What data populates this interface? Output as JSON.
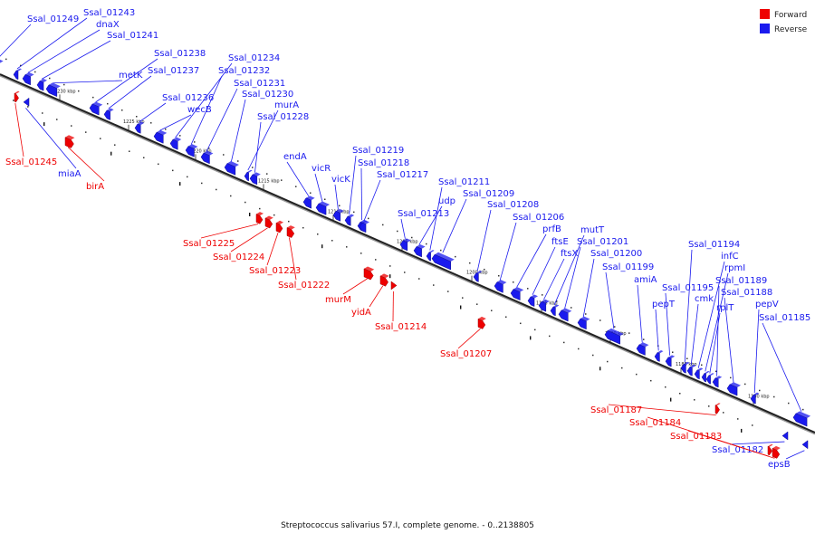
{
  "legend": {
    "forward": {
      "label": "Forward",
      "color": "#ee0000"
    },
    "reverse": {
      "label": "Reverse",
      "color": "#1a1aee"
    }
  },
  "caption": "Streptococcus salivarius 57.I, complete genome. - 0..2138805",
  "ticks": [
    "1230 kbp",
    "1225 kbp",
    "1220 kbp",
    "1215 kbp",
    "1210 kbp",
    "1205 kbp",
    "1200 kbp",
    "1195 kbp",
    "1190 kbp",
    "1185 kbp",
    "1180 kbp"
  ],
  "genes": [
    {
      "label": "Ssal_01249",
      "strand": "reverse"
    },
    {
      "label": "Ssal_01243",
      "strand": "reverse"
    },
    {
      "label": "dnaX",
      "strand": "reverse"
    },
    {
      "label": "Ssal_01241",
      "strand": "reverse"
    },
    {
      "label": "metK",
      "strand": "reverse"
    },
    {
      "label": "Ssal_01238",
      "strand": "reverse"
    },
    {
      "label": "Ssal_01237",
      "strand": "reverse"
    },
    {
      "label": "Ssal_01236",
      "strand": "reverse"
    },
    {
      "label": "wecB",
      "strand": "reverse"
    },
    {
      "label": "Ssal_01234",
      "strand": "reverse"
    },
    {
      "label": "Ssal_01232",
      "strand": "reverse"
    },
    {
      "label": "Ssal_01231",
      "strand": "reverse"
    },
    {
      "label": "Ssal_01230",
      "strand": "reverse"
    },
    {
      "label": "murA",
      "strand": "reverse"
    },
    {
      "label": "Ssal_01228",
      "strand": "reverse"
    },
    {
      "label": "endA",
      "strand": "reverse"
    },
    {
      "label": "vicR",
      "strand": "reverse"
    },
    {
      "label": "vicK",
      "strand": "reverse"
    },
    {
      "label": "Ssal_01219",
      "strand": "reverse"
    },
    {
      "label": "Ssal_01218",
      "strand": "reverse"
    },
    {
      "label": "Ssal_01217",
      "strand": "reverse"
    },
    {
      "label": "Ssal_01213",
      "strand": "reverse"
    },
    {
      "label": "udp",
      "strand": "reverse"
    },
    {
      "label": "Ssal_01211",
      "strand": "reverse"
    },
    {
      "label": "Ssal_01209",
      "strand": "reverse"
    },
    {
      "label": "Ssal_01208",
      "strand": "reverse"
    },
    {
      "label": "Ssal_01206",
      "strand": "reverse"
    },
    {
      "label": "prfB",
      "strand": "reverse"
    },
    {
      "label": "ftsE",
      "strand": "reverse"
    },
    {
      "label": "ftsX",
      "strand": "reverse"
    },
    {
      "label": "mutT",
      "strand": "reverse"
    },
    {
      "label": "Ssal_01201",
      "strand": "reverse"
    },
    {
      "label": "Ssal_01200",
      "strand": "reverse"
    },
    {
      "label": "Ssal_01199",
      "strand": "reverse"
    },
    {
      "label": "amiA",
      "strand": "reverse"
    },
    {
      "label": "pepT",
      "strand": "reverse"
    },
    {
      "label": "Ssal_01195",
      "strand": "reverse"
    },
    {
      "label": "Ssal_01194",
      "strand": "reverse"
    },
    {
      "label": "cmk",
      "strand": "reverse"
    },
    {
      "label": "infC",
      "strand": "reverse"
    },
    {
      "label": "rpmI",
      "strand": "reverse"
    },
    {
      "label": "rplT",
      "strand": "reverse"
    },
    {
      "label": "Ssal_01189",
      "strand": "reverse"
    },
    {
      "label": "Ssal_01188",
      "strand": "reverse"
    },
    {
      "label": "pepV",
      "strand": "reverse"
    },
    {
      "label": "Ssal_01185",
      "strand": "reverse"
    },
    {
      "label": "Ssal_01182",
      "strand": "reverse"
    },
    {
      "label": "epsB",
      "strand": "reverse"
    },
    {
      "label": "miaA",
      "strand": "reverse"
    },
    {
      "label": "Ssal_01245",
      "strand": "forward"
    },
    {
      "label": "birA",
      "strand": "forward"
    },
    {
      "label": "Ssal_01225",
      "strand": "forward"
    },
    {
      "label": "Ssal_01224",
      "strand": "forward"
    },
    {
      "label": "Ssal_01223",
      "strand": "forward"
    },
    {
      "label": "Ssal_01222",
      "strand": "forward"
    },
    {
      "label": "murM",
      "strand": "forward"
    },
    {
      "label": "yidA",
      "strand": "forward"
    },
    {
      "label": "Ssal_01214",
      "strand": "forward"
    },
    {
      "label": "Ssal_01207",
      "strand": "forward"
    },
    {
      "label": "Ssal_01187",
      "strand": "forward"
    },
    {
      "label": "Ssal_01184",
      "strand": "forward"
    },
    {
      "label": "Ssal_01183",
      "strand": "forward"
    }
  ]
}
